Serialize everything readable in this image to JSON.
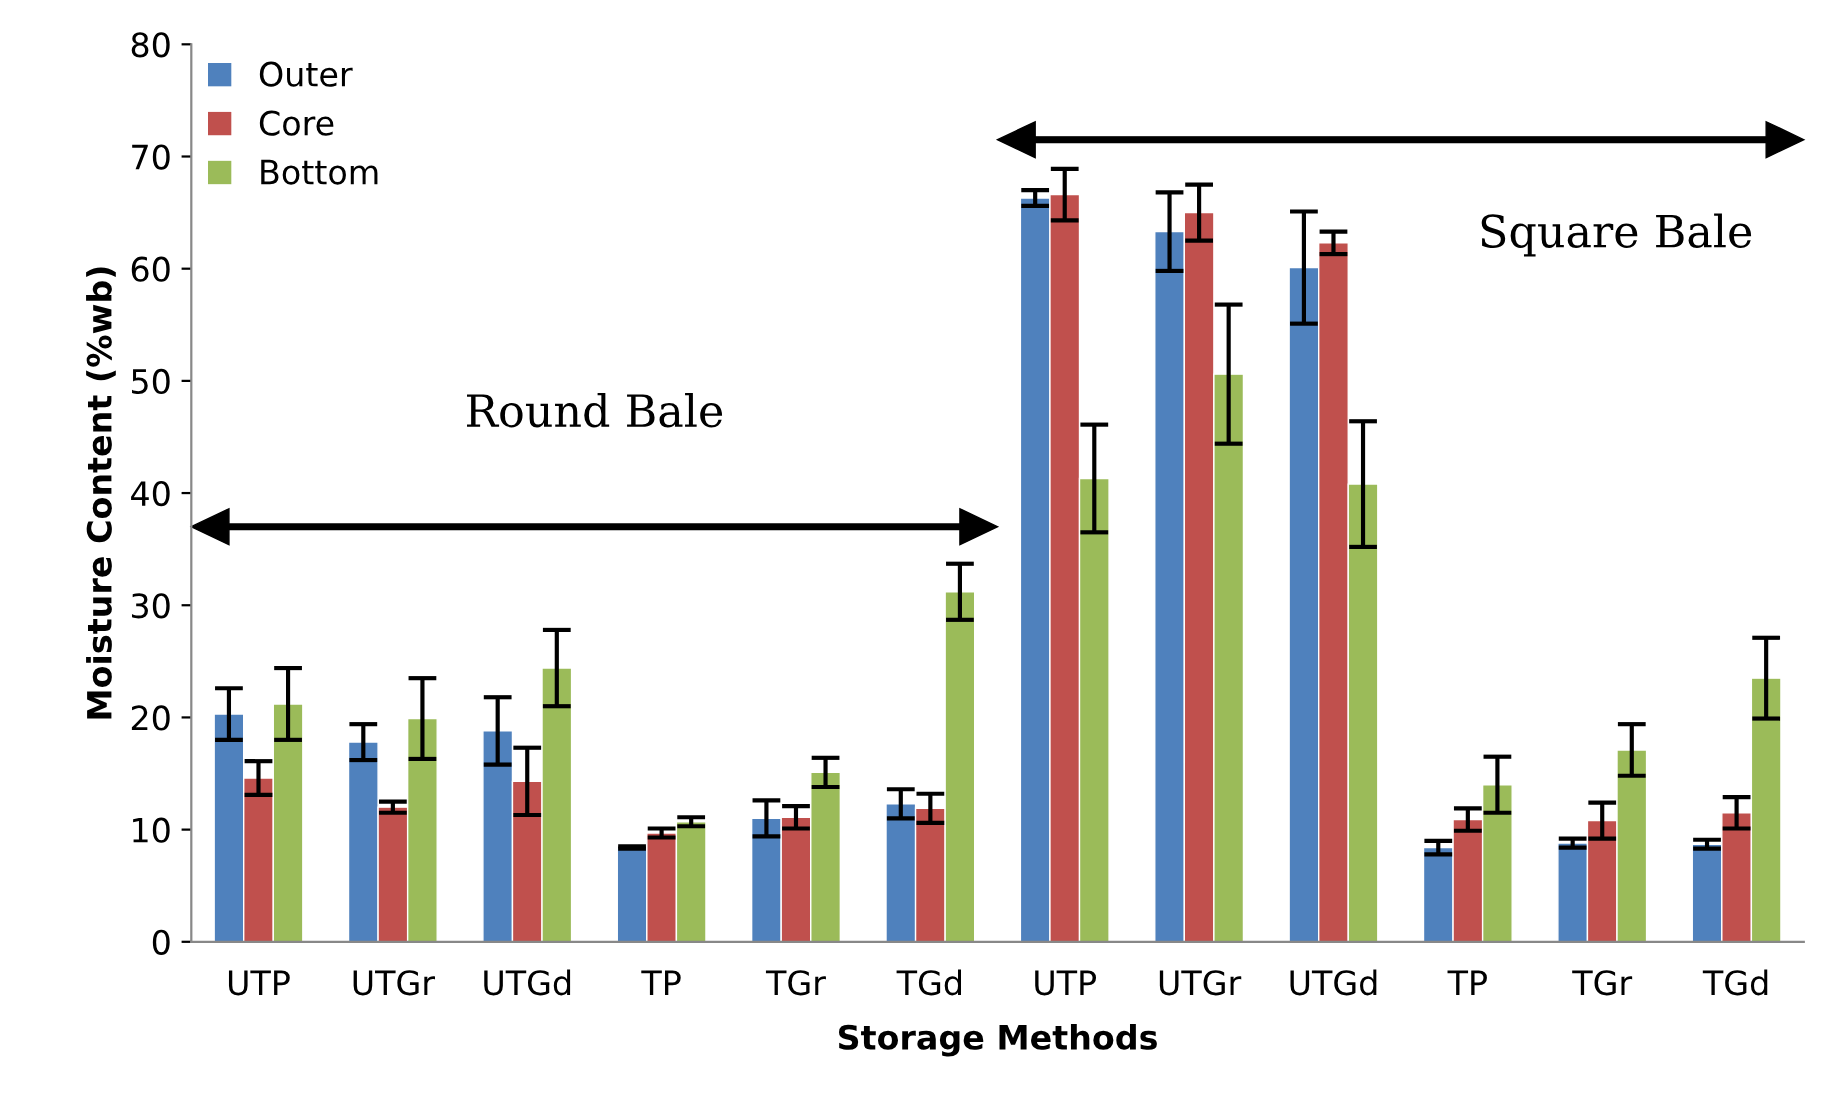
{
  "chart_data": {
    "type": "bar",
    "xlabel": "Storage Methods",
    "ylabel": "Moisture Content (%wb)",
    "categories": [
      "UTP",
      "UTGr",
      "UTGd",
      "TP",
      "TGr",
      "TGd",
      "UTP",
      "UTGr",
      "UTGd",
      "TP",
      "TGr",
      "TGd"
    ],
    "series": [
      {
        "name": "Outer",
        "color": "#4f81bd",
        "values": [
          20.3,
          17.8,
          18.8,
          8.4,
          11.0,
          12.3,
          66.3,
          63.3,
          60.1,
          8.4,
          8.8,
          8.7
        ],
        "errors": [
          2.3,
          1.6,
          3.0,
          0.1,
          1.6,
          1.3,
          0.7,
          3.5,
          5.0,
          0.6,
          0.4,
          0.4
        ]
      },
      {
        "name": "Core",
        "color": "#c0504d",
        "values": [
          14.6,
          12.0,
          14.3,
          9.7,
          11.1,
          11.9,
          66.6,
          65.0,
          62.3,
          10.9,
          10.8,
          11.5
        ],
        "errors": [
          1.5,
          0.5,
          3.0,
          0.4,
          1.0,
          1.3,
          2.3,
          2.5,
          1.0,
          1.0,
          1.6,
          1.4
        ]
      },
      {
        "name": "Bottom",
        "color": "#9bbb59",
        "values": [
          21.2,
          19.9,
          24.4,
          10.7,
          15.1,
          31.2,
          41.3,
          50.6,
          40.8,
          14.0,
          17.1,
          23.5
        ],
        "errors": [
          3.2,
          3.6,
          3.4,
          0.4,
          1.3,
          2.5,
          4.8,
          6.2,
          5.6,
          2.5,
          2.3,
          3.6
        ]
      }
    ],
    "annotations": [
      "Round Bale",
      "Square Bale"
    ],
    "ylim": [
      0,
      80
    ],
    "yticks": [
      0,
      10,
      20,
      30,
      40,
      50,
      60,
      70,
      80
    ],
    "grid": false,
    "legend": "top left"
  }
}
